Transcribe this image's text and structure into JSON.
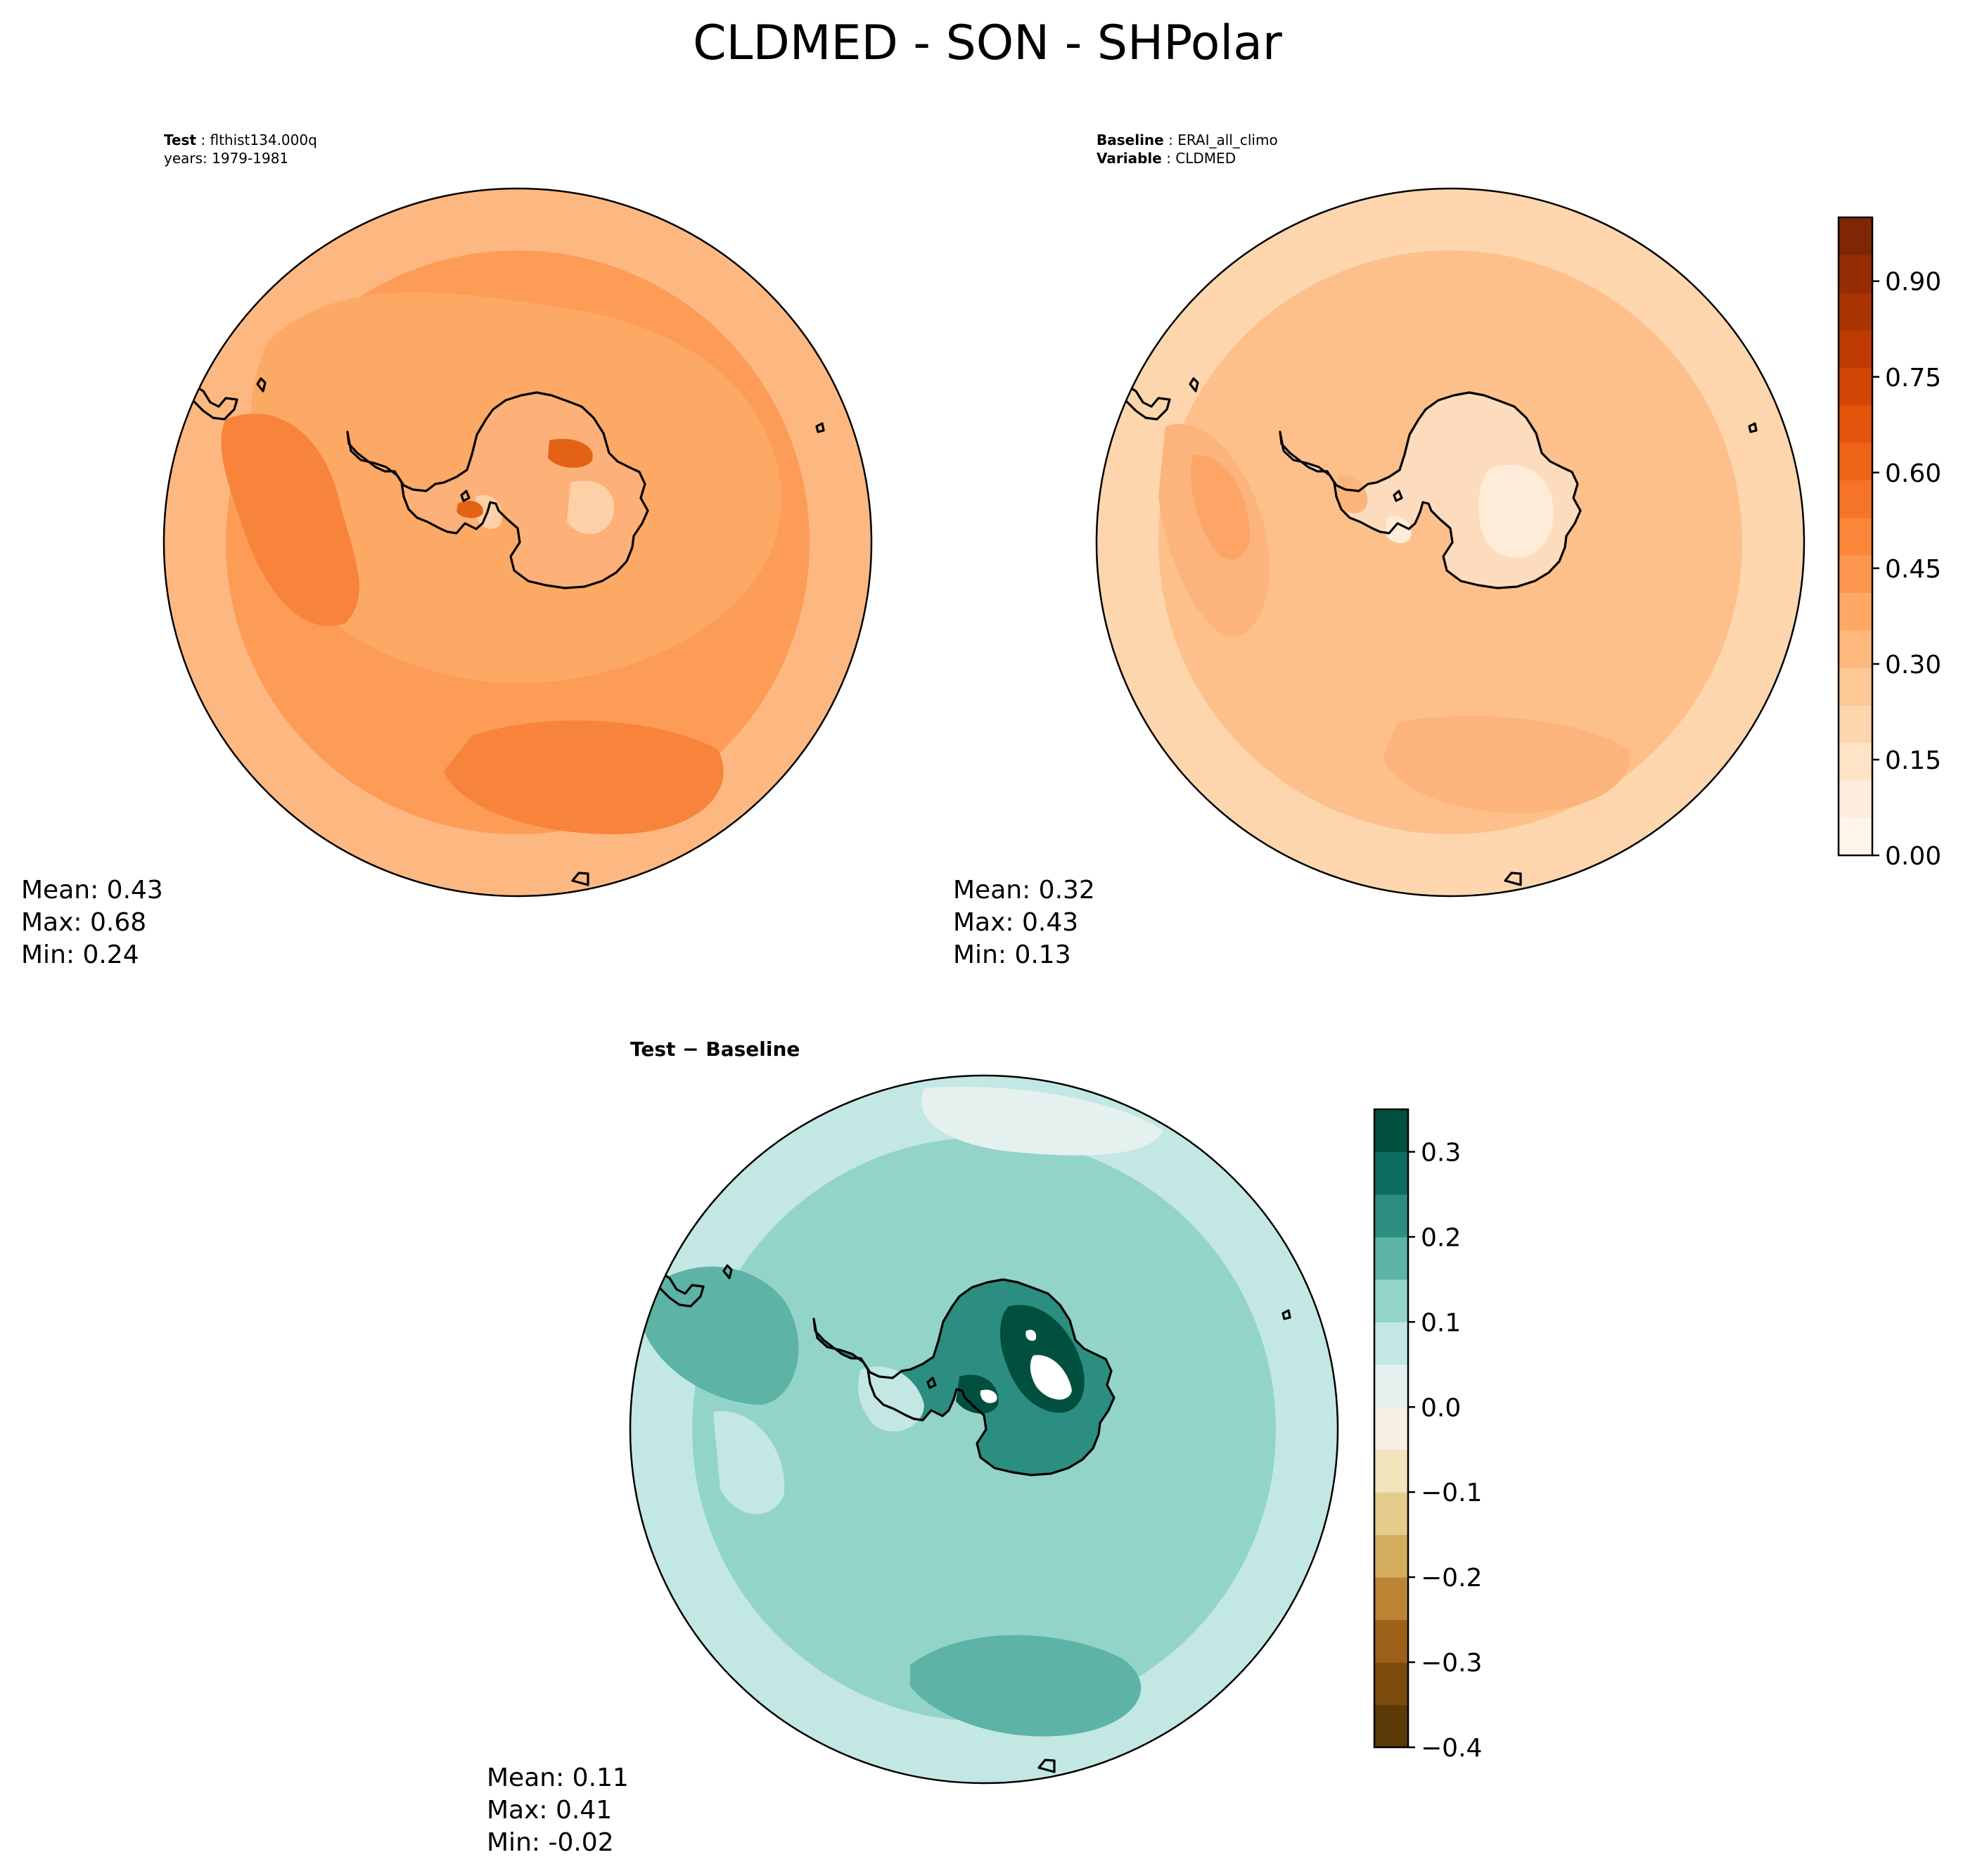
{
  "title": "CLDMED - SON - SHPolar",
  "test_panel": {
    "header_label": "Test",
    "header_value": "flthist134.000q",
    "years_line": "years: 1979-1981",
    "stats": {
      "mean": "Mean:  0.43",
      "max": "Max:  0.68",
      "min": "Min:  0.24"
    }
  },
  "baseline_panel": {
    "header_label": "Baseline",
    "header_value": "ERAI_all_climo",
    "variable_label": "Variable",
    "variable_value": "CLDMED",
    "stats": {
      "mean": "Mean:  0.32",
      "max": "Max:  0.43",
      "min": "Min:  0.13"
    }
  },
  "diff_panel": {
    "header": "Test − Baseline",
    "stats": {
      "mean": "Mean:  0.11",
      "max": "Max:  0.41",
      "min": "Min: -0.02"
    }
  },
  "colorbar_main": {
    "min": 0.0,
    "max": 1.0,
    "ticks": [
      "0.00",
      "0.15",
      "0.30",
      "0.45",
      "0.60",
      "0.75",
      "0.90"
    ],
    "tick_values": [
      0.0,
      0.15,
      0.3,
      0.45,
      0.6,
      0.75,
      0.9
    ],
    "colors": [
      "#fff5eb",
      "#feedde",
      "#fee3c6",
      "#fdd6ae",
      "#fdc895",
      "#fdb97e",
      "#fda865",
      "#fd974f",
      "#fb8539",
      "#f67427",
      "#ee6416",
      "#e3540c",
      "#d44605",
      "#bf3b03",
      "#a93203",
      "#952c04",
      "#7f2704"
    ]
  },
  "colorbar_diff": {
    "min": -0.4,
    "max": 0.35,
    "ticks": [
      "−0.4",
      "−0.3",
      "−0.2",
      "−0.1",
      "0.0",
      "0.1",
      "0.2",
      "0.3"
    ],
    "tick_values": [
      -0.4,
      -0.3,
      -0.2,
      -0.1,
      0.0,
      0.1,
      0.2,
      0.3
    ],
    "colors": [
      "#5c3a07",
      "#7d4a0d",
      "#9d6019",
      "#bd8335",
      "#d4ad5e",
      "#e6cc8c",
      "#f2e3bb",
      "#f5f0e1",
      "#e4f1ee",
      "#c3e7e2",
      "#93d4c9",
      "#5db3a5",
      "#2c8e80",
      "#0c6e60",
      "#01503f"
    ]
  },
  "maps": {
    "test_colors": {
      "ocean_base": "#fd9c57",
      "outer": "#fdb881",
      "mid": "#fda966",
      "strong": "#f8833a",
      "land": "#fdb078",
      "land_light": "#fdd0a8",
      "land_dark": "#e36215"
    },
    "baseline_colors": {
      "ocean_base": "#fdc08b",
      "outer": "#fdd6ae",
      "mid": "#fdb37c",
      "strong": "#fca566",
      "land": "#fddcbd",
      "land_light": "#feecd9",
      "land_dark": "#fdb47a"
    },
    "diff_colors": {
      "ocean_base": "#93d4c9",
      "outer": "#c3e7e2",
      "mid": "#5db3a5",
      "light": "#e4f1ee",
      "land": "#2c8e80",
      "land_dark": "#01503f",
      "hole": "#ffffff"
    }
  }
}
